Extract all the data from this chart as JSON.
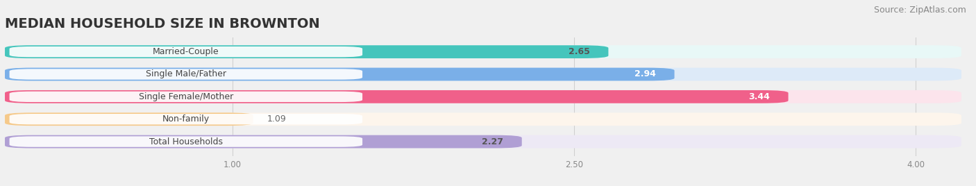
{
  "title": "MEDIAN HOUSEHOLD SIZE IN BROWNTON",
  "source": "Source: ZipAtlas.com",
  "categories": [
    "Married-Couple",
    "Single Male/Father",
    "Single Female/Mother",
    "Non-family",
    "Total Households"
  ],
  "values": [
    2.65,
    2.94,
    3.44,
    1.09,
    2.27
  ],
  "bar_colors": [
    "#45c5bc",
    "#7aafe8",
    "#f0608a",
    "#f5c98a",
    "#b09fd4"
  ],
  "bar_bg_colors": [
    "#e8f8f7",
    "#ddeaf8",
    "#fce4ec",
    "#fdf5ec",
    "#ede9f5"
  ],
  "value_text_colors": [
    "#555555",
    "#ffffff",
    "#ffffff",
    "#888888",
    "#555555"
  ],
  "xlim_left": 0.0,
  "xlim_right": 4.2,
  "xticks": [
    1.0,
    2.5,
    4.0
  ],
  "title_fontsize": 14,
  "source_fontsize": 9,
  "label_fontsize": 9,
  "value_fontsize": 9,
  "bar_height": 0.58,
  "background_color": "#f0f0f0"
}
